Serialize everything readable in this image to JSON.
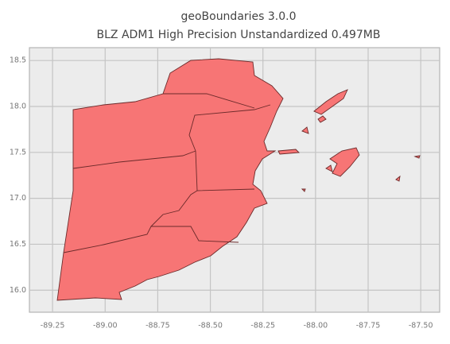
{
  "chart_data": {
    "type": "map",
    "title": "geoBoundaries 3.0.0",
    "subtitle": "BLZ ADM1 High Precision Unstandardized 0.497MB",
    "xlim": [
      -89.36,
      -87.41
    ],
    "ylim": [
      15.76,
      18.64
    ],
    "xticks": [
      -89.25,
      {
        "value": -89,
        "label": "-89.00"
      },
      -88.75,
      {
        "value": -88.5,
        "label": "-88.50"
      },
      -88.25,
      {
        "value": -88,
        "label": "-88.00"
      },
      -87.75,
      {
        "value": -87.5,
        "label": "-87.50"
      }
    ],
    "yticks": [
      {
        "value": 16,
        "label": "16.0"
      },
      16.5,
      {
        "value": 17,
        "label": "17.0"
      },
      17.5,
      {
        "value": 18,
        "label": "18.0"
      },
      18.5
    ],
    "grid": true,
    "color": "#f77575"
  }
}
